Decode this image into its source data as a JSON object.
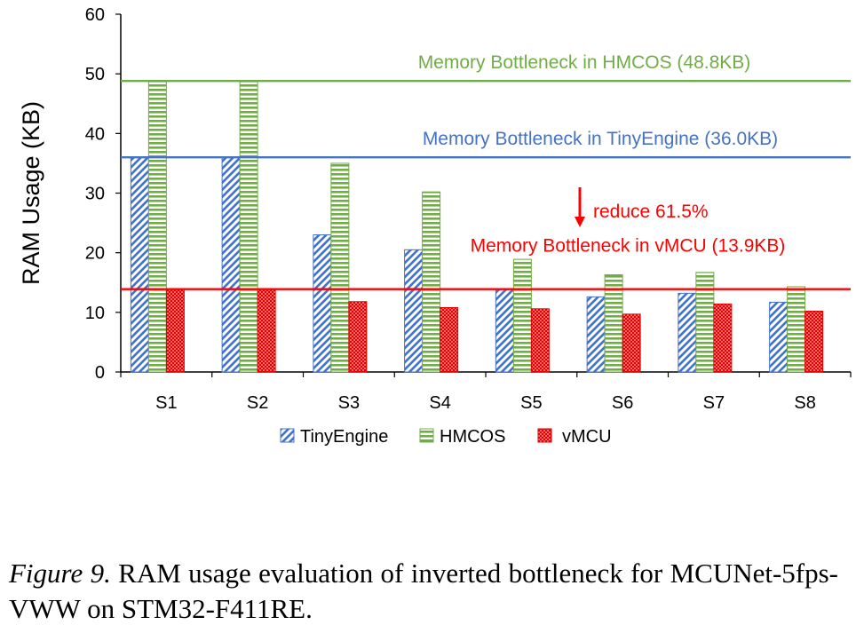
{
  "chart_data": {
    "type": "bar",
    "categories": [
      "S1",
      "S2",
      "S3",
      "S4",
      "S5",
      "S6",
      "S7",
      "S8"
    ],
    "series": [
      {
        "name": "TinyEngine",
        "values": [
          36.0,
          36.0,
          23.0,
          20.5,
          13.9,
          12.6,
          13.2,
          11.7
        ],
        "color": "#4472c4",
        "pattern": "diagonal-hatch"
      },
      {
        "name": "HMCOS",
        "values": [
          48.8,
          48.8,
          35.0,
          30.2,
          18.9,
          16.3,
          16.7,
          14.3
        ],
        "color": "#70ad47",
        "pattern": "horizontal-lines"
      },
      {
        "name": "vMCU",
        "values": [
          13.9,
          13.9,
          11.8,
          10.8,
          10.6,
          9.7,
          11.4,
          10.2
        ],
        "color": "#e00000",
        "pattern": "dots"
      }
    ],
    "xlabel": "",
    "ylabel": "RAM Usage (KB)",
    "ylim": [
      0,
      60
    ],
    "yticks": [
      0,
      10,
      20,
      30,
      40,
      50,
      60
    ],
    "grid": false,
    "legend": "bottom",
    "reference_lines": [
      {
        "value": 48.8,
        "label": "Memory Bottleneck in HMCOS (48.8KB)",
        "color": "#70ad47"
      },
      {
        "value": 36.0,
        "label": "Memory Bottleneck in TinyEngine (36.0KB)",
        "color": "#4472c4"
      },
      {
        "value": 13.9,
        "label": "Memory Bottleneck in vMCU (13.9KB)",
        "color": "#ff0000"
      }
    ],
    "annotation": {
      "text": "reduce 61.5%",
      "color": "#ff0000"
    }
  },
  "caption": {
    "figure_label": "Figure 9.",
    "text": " RAM usage evaluation of inverted bottleneck for MCUNet-5fps-VWW on STM32-F411RE."
  }
}
